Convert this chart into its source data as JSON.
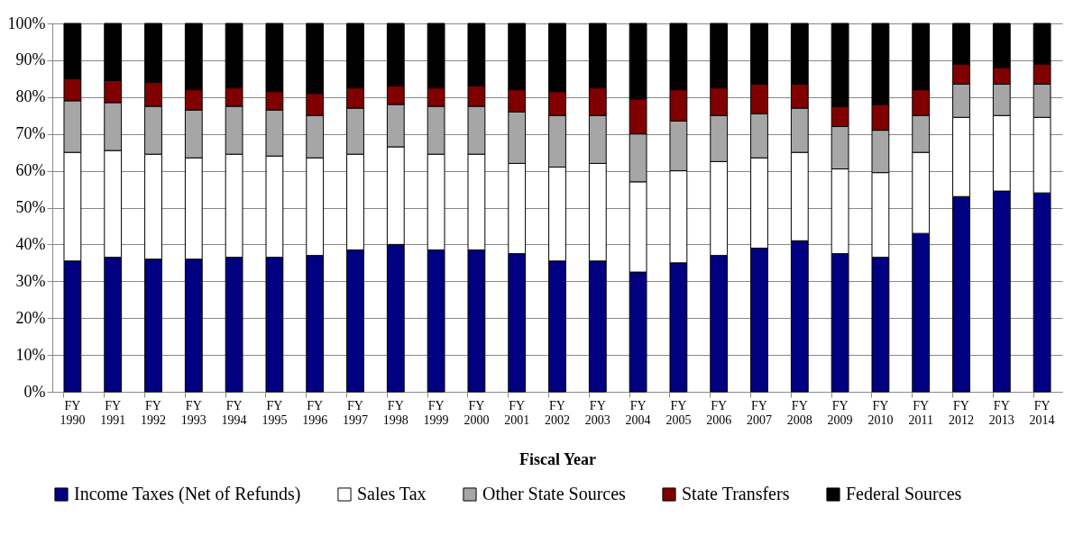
{
  "chart_data": {
    "type": "bar",
    "stacked": true,
    "xlabel": "Fiscal Year",
    "categories": [
      "FY 1990",
      "FY 1991",
      "FY 1992",
      "FY 1993",
      "FY 1994",
      "FY 1995",
      "FY 1996",
      "FY 1997",
      "FY 1998",
      "FY 1999",
      "FY 2000",
      "FY 2001",
      "FY 2002",
      "FY 2003",
      "FY 2004",
      "FY 2005",
      "FY 2006",
      "FY 2007",
      "FY 2008",
      "FY 2009",
      "FY 2010",
      "FY 2011",
      "FY 2012",
      "FY 2013",
      "FY 2014"
    ],
    "series": [
      {
        "name": "Income Taxes (Net of Refunds)",
        "color": "#000080",
        "values": [
          35.5,
          36.5,
          36,
          36,
          36.5,
          36.5,
          37,
          38.5,
          40,
          38.5,
          38.5,
          37.5,
          35.5,
          35.5,
          32.5,
          35,
          37,
          39,
          41,
          37.5,
          36.5,
          43,
          53,
          54.5,
          54
        ]
      },
      {
        "name": "Sales Tax",
        "color": "#ffffff",
        "values": [
          29.5,
          29,
          28.5,
          27.5,
          28,
          27.5,
          26.5,
          26,
          26.5,
          26,
          26,
          24.5,
          25.5,
          26.5,
          24.5,
          25,
          25.5,
          24.5,
          24,
          23,
          23,
          22,
          21.5,
          20.5,
          20.5
        ]
      },
      {
        "name": "Other State Sources",
        "color": "#a6a6a6",
        "values": [
          14,
          13,
          13,
          13,
          13,
          12.5,
          11.5,
          12.5,
          11.5,
          13,
          13,
          14,
          14,
          13,
          13,
          13.5,
          12.5,
          12,
          12,
          11.5,
          11.5,
          10,
          9,
          8.5,
          9
        ]
      },
      {
        "name": "State Transfers",
        "color": "#800000",
        "values": [
          6,
          6,
          6.5,
          5.5,
          5,
          5,
          6,
          5.5,
          5,
          5,
          5.5,
          6,
          6.5,
          7.5,
          9.5,
          8.5,
          7.5,
          8,
          6.5,
          5.5,
          7,
          7,
          5.5,
          4.5,
          5.5
        ]
      },
      {
        "name": "Federal Sources",
        "color": "#000000",
        "values": [
          15,
          15.5,
          16,
          18,
          17.5,
          18.5,
          19,
          17.5,
          17,
          17.5,
          17,
          18,
          18.5,
          17.5,
          20.5,
          18,
          17.5,
          16.5,
          16.5,
          22.5,
          22,
          18,
          11,
          12,
          11
        ]
      }
    ],
    "ylim": [
      0,
      100
    ],
    "yticks": [
      {
        "value": 0,
        "label": "0%"
      },
      {
        "value": 10,
        "label": "10%"
      },
      {
        "value": 20,
        "label": "20%"
      },
      {
        "value": 30,
        "label": "30%"
      },
      {
        "value": 40,
        "label": "40%"
      },
      {
        "value": 50,
        "label": "50%"
      },
      {
        "value": 60,
        "label": "60%"
      },
      {
        "value": 70,
        "label": "70%"
      },
      {
        "value": 80,
        "label": "80%"
      },
      {
        "value": 90,
        "label": "90%"
      },
      {
        "value": 100,
        "label": "100%"
      }
    ],
    "grid": "y",
    "legend": "bottom"
  }
}
